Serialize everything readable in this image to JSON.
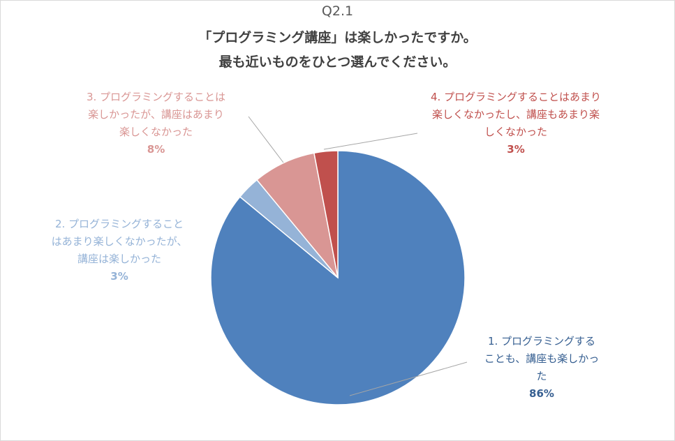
{
  "chart_data": {
    "type": "pie",
    "title_lines": [
      "Q2.1",
      "「プログラミング講座」は楽しかったですか。",
      "最も近いものをひとつ選んでください。"
    ],
    "categories": [
      "1. プログラミングすることも、講座も楽しかった",
      "2. プログラミングすることはあまり楽しくなかったが、講座は楽しかった",
      "3. プログラミングすることは楽しかったが、講座はあまり楽しくなかった",
      "4. プログラミングすることはあまり楽しくなかったし、講座もあまり楽しくなかった"
    ],
    "values": [
      86,
      3,
      8,
      3
    ],
    "value_labels": [
      "86%",
      "3%",
      "8%",
      "3%"
    ],
    "colors": [
      "#4f81bd",
      "#95b3d7",
      "#d99694",
      "#c0504d"
    ],
    "label_colors": [
      "#365f91",
      "#95b3d7",
      "#d99694",
      "#c0504d"
    ],
    "label_lines": [
      [
        "1. プログラミングする",
        "ことも、講座も楽しかっ",
        "た"
      ],
      [
        "2. プログラミングすること",
        "はあまり楽しくなかったが、",
        "講座は楽しかった"
      ],
      [
        "3. プログラミングすることは",
        "楽しかったが、講座はあまり",
        "楽しくなかった"
      ],
      [
        "4. プログラミングすることはあまり",
        "楽しくなかったし、講座もあまり楽",
        "しくなかった"
      ]
    ],
    "legend": "none"
  }
}
